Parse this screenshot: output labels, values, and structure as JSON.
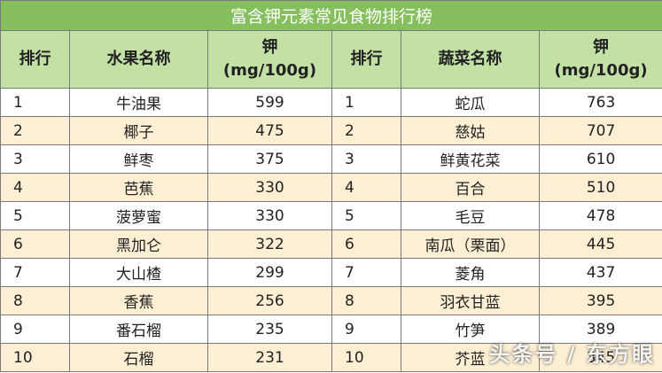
{
  "title": "富含钾元素常见食物排行榜",
  "headers": {
    "rank": "排行",
    "fruit_name": "水果名称",
    "potassium_line1": "钾",
    "potassium_line2": "(mg/100g)",
    "veg_name": "蔬菜名称"
  },
  "rows": [
    {
      "fruit_rank": "1",
      "fruit": "牛油果",
      "fruit_k": "599",
      "veg_rank": "1",
      "veg": "蛇瓜",
      "veg_k": "763"
    },
    {
      "fruit_rank": "2",
      "fruit": "椰子",
      "fruit_k": "475",
      "veg_rank": "2",
      "veg": "慈姑",
      "veg_k": "707"
    },
    {
      "fruit_rank": "3",
      "fruit": "鲜枣",
      "fruit_k": "375",
      "veg_rank": "3",
      "veg": "鲜黄花菜",
      "veg_k": "610"
    },
    {
      "fruit_rank": "4",
      "fruit": "芭蕉",
      "fruit_k": "330",
      "veg_rank": "4",
      "veg": "百合",
      "veg_k": "510"
    },
    {
      "fruit_rank": "5",
      "fruit": "菠萝蜜",
      "fruit_k": "330",
      "veg_rank": "5",
      "veg": "毛豆",
      "veg_k": "478"
    },
    {
      "fruit_rank": "6",
      "fruit": "黑加仑",
      "fruit_k": "322",
      "veg_rank": "6",
      "veg": "南瓜（栗面）",
      "veg_k": "445"
    },
    {
      "fruit_rank": "7",
      "fruit": "大山楂",
      "fruit_k": "299",
      "veg_rank": "7",
      "veg": "菱角",
      "veg_k": "437"
    },
    {
      "fruit_rank": "8",
      "fruit": "香蕉",
      "fruit_k": "256",
      "veg_rank": "8",
      "veg": "羽衣甘蓝",
      "veg_k": "395"
    },
    {
      "fruit_rank": "9",
      "fruit": "番石榴",
      "fruit_k": "235",
      "veg_rank": "9",
      "veg": "竹笋",
      "veg_k": "389"
    },
    {
      "fruit_rank": "10",
      "fruit": "石榴",
      "fruit_k": "231",
      "veg_rank": "10",
      "veg": "芥蓝",
      "veg_k": "345"
    }
  ],
  "watermark": "头条号 / 东方眼"
}
